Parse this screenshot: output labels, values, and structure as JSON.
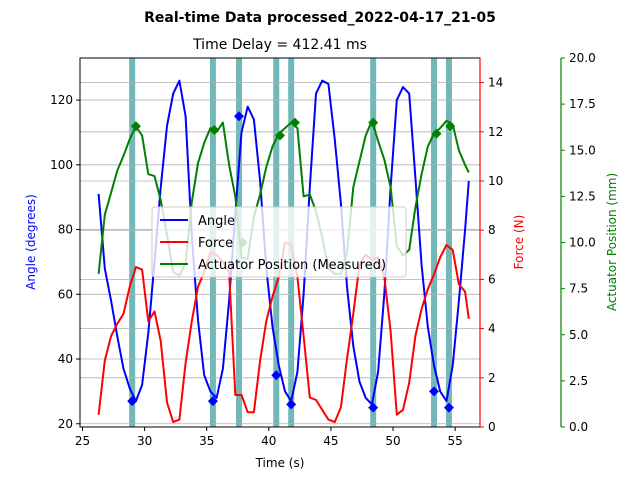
{
  "chart_data": {
    "type": "line",
    "title": "Real-time Data processed_2022-04-17_21-05",
    "subtitle": "Time Delay = 412.41 ms",
    "xlabel": "Time (s)",
    "xlim": [
      24.8,
      57.0
    ],
    "xticks": [
      "25",
      "30",
      "35",
      "40",
      "45",
      "50",
      "55"
    ],
    "grid": "horizontal",
    "legend_placement": "center",
    "axes": {
      "left": {
        "label": "Angle (degrees)",
        "color": "#0000ff",
        "ylim": [
          19,
          133
        ],
        "ticks": [
          "20",
          "40",
          "60",
          "80",
          "100",
          "120"
        ]
      },
      "right1": {
        "label": "Force (N)",
        "color": "#ff0000",
        "ylim": [
          0,
          15
        ],
        "ticks": [
          "0",
          "2",
          "4",
          "6",
          "8",
          "10",
          "12",
          "14"
        ]
      },
      "right2": {
        "label": "Actuator Position (mm)",
        "color": "#008000",
        "ylim": [
          0,
          20
        ],
        "ticks": [
          "0.0",
          "2.5",
          "5.0",
          "7.5",
          "10.0",
          "12.5",
          "15.0",
          "17.5",
          "20.0"
        ]
      }
    },
    "vertical_bands": [
      29.0,
      35.5,
      37.6,
      40.6,
      41.8,
      48.4,
      53.3,
      54.5
    ],
    "band_color": "#5aabab",
    "series": [
      {
        "name": "Angle",
        "axis": "left",
        "color": "#0000ff",
        "x": [
          26.3,
          26.8,
          27.3,
          27.8,
          28.3,
          28.8,
          29.3,
          29.8,
          30.3,
          30.8,
          31.3,
          31.8,
          32.3,
          32.8,
          33.3,
          33.8,
          34.3,
          34.8,
          35.3,
          35.8,
          36.3,
          36.8,
          37.3,
          37.8,
          38.3,
          38.8,
          39.3,
          39.8,
          40.3,
          40.8,
          41.3,
          41.8,
          42.3,
          42.8,
          43.3,
          43.8,
          44.3,
          44.8,
          45.3,
          45.8,
          46.3,
          46.8,
          47.3,
          47.8,
          48.3,
          48.8,
          49.3,
          49.8,
          50.3,
          50.8,
          51.3,
          51.8,
          52.3,
          52.8,
          53.3,
          53.8,
          54.3,
          54.8,
          55.3,
          55.8,
          56.1
        ],
        "y": [
          91,
          68,
          58,
          47,
          37,
          31,
          27,
          32,
          48,
          70,
          93,
          112,
          122,
          126,
          115,
          78,
          52,
          35,
          30,
          28,
          37,
          58,
          85,
          110,
          118,
          114,
          95,
          68,
          50,
          38,
          30,
          27,
          36,
          60,
          93,
          122,
          126,
          125,
          108,
          88,
          62,
          44,
          33,
          28,
          26,
          36,
          60,
          93,
          120,
          124,
          122,
          96,
          69,
          50,
          38,
          30,
          27,
          38,
          58,
          80,
          95
        ]
      },
      {
        "name": "Force",
        "axis": "right1",
        "color": "#ff0000",
        "x": [
          26.3,
          26.8,
          27.3,
          27.8,
          28.3,
          28.8,
          29.3,
          29.8,
          30.3,
          30.8,
          31.3,
          31.8,
          32.3,
          32.8,
          33.3,
          33.8,
          34.3,
          34.8,
          35.3,
          35.8,
          36.3,
          36.8,
          37.3,
          37.8,
          38.3,
          38.8,
          39.3,
          39.8,
          40.3,
          40.8,
          41.3,
          41.8,
          42.3,
          42.8,
          43.3,
          43.8,
          44.3,
          44.8,
          45.3,
          45.8,
          46.3,
          46.8,
          47.3,
          47.8,
          48.3,
          48.8,
          49.3,
          49.8,
          50.3,
          50.8,
          51.3,
          51.8,
          52.3,
          52.8,
          53.3,
          53.8,
          54.3,
          54.8,
          55.3,
          55.8,
          56.1
        ],
        "y": [
          0.5,
          2.7,
          3.7,
          4.2,
          4.6,
          5.7,
          6.5,
          6.4,
          4.3,
          4.7,
          3.5,
          1.0,
          0.2,
          0.3,
          2.6,
          4.3,
          5.7,
          6.3,
          7.1,
          7.0,
          6.7,
          6.3,
          1.3,
          1.3,
          0.6,
          0.6,
          2.7,
          4.3,
          5.3,
          6.1,
          7.5,
          7.4,
          6.1,
          3.7,
          1.2,
          1.1,
          0.7,
          0.3,
          0.2,
          0.8,
          2.8,
          4.6,
          6.6,
          7.0,
          6.8,
          6.9,
          6.1,
          3.9,
          0.5,
          0.7,
          1.8,
          3.7,
          4.8,
          5.6,
          6.2,
          6.9,
          7.4,
          7.2,
          5.8,
          5.5,
          4.4
        ]
      },
      {
        "name": "Actuator Position (Measured)",
        "axis": "right2",
        "color": "#008000",
        "x": [
          26.3,
          26.8,
          27.3,
          27.8,
          28.3,
          28.8,
          29.3,
          29.8,
          30.3,
          30.8,
          31.3,
          31.8,
          32.3,
          32.8,
          33.3,
          33.8,
          34.3,
          34.8,
          35.3,
          35.8,
          36.3,
          36.8,
          37.3,
          37.8,
          38.3,
          38.8,
          39.3,
          39.8,
          40.3,
          40.8,
          41.3,
          41.8,
          42.3,
          42.8,
          43.3,
          43.8,
          44.3,
          44.8,
          45.3,
          45.8,
          46.3,
          46.8,
          47.3,
          47.8,
          48.3,
          48.8,
          49.3,
          49.8,
          50.3,
          50.8,
          51.3,
          51.8,
          52.3,
          52.8,
          53.3,
          53.8,
          54.3,
          54.8,
          55.3,
          55.8,
          56.1
        ],
        "y": [
          8.3,
          11.5,
          12.7,
          13.9,
          14.7,
          15.6,
          16.3,
          15.8,
          13.7,
          13.6,
          12.3,
          10.4,
          8.4,
          8.2,
          8.9,
          12.2,
          14.3,
          15.4,
          16.2,
          16.0,
          16.5,
          14.2,
          12.5,
          9.2,
          9.1,
          11.4,
          12.6,
          14.1,
          15.2,
          15.9,
          16.2,
          16.5,
          16.2,
          12.5,
          12.6,
          11.7,
          10.3,
          8.6,
          8.3,
          8.3,
          9.5,
          13.0,
          14.4,
          15.8,
          16.6,
          15.5,
          14.5,
          13.0,
          9.8,
          9.3,
          9.6,
          11.9,
          13.7,
          15.2,
          15.9,
          16.2,
          16.6,
          16.4,
          15.0,
          14.2,
          13.8
        ]
      }
    ],
    "markers": [
      {
        "axis": "left",
        "color": "#0000ff",
        "x": 29.0,
        "y": 27
      },
      {
        "axis": "left",
        "color": "#0000ff",
        "x": 35.5,
        "y": 27
      },
      {
        "axis": "left",
        "color": "#0000ff",
        "x": 37.6,
        "y": 115
      },
      {
        "axis": "left",
        "color": "#0000ff",
        "x": 40.6,
        "y": 35
      },
      {
        "axis": "left",
        "color": "#0000ff",
        "x": 41.8,
        "y": 26
      },
      {
        "axis": "left",
        "color": "#0000ff",
        "x": 48.4,
        "y": 25
      },
      {
        "axis": "left",
        "color": "#0000ff",
        "x": 53.3,
        "y": 30
      },
      {
        "axis": "left",
        "color": "#0000ff",
        "x": 54.5,
        "y": 25
      },
      {
        "axis": "right2",
        "color": "#008000",
        "x": 29.3,
        "y": 16.3
      },
      {
        "axis": "right2",
        "color": "#008000",
        "x": 35.6,
        "y": 16.1
      },
      {
        "axis": "right2",
        "color": "#008000",
        "x": 37.9,
        "y": 10.0
      },
      {
        "axis": "right2",
        "color": "#008000",
        "x": 40.9,
        "y": 15.8
      },
      {
        "axis": "right2",
        "color": "#008000",
        "x": 42.1,
        "y": 16.5
      },
      {
        "axis": "right2",
        "color": "#008000",
        "x": 48.4,
        "y": 16.5
      },
      {
        "axis": "right2",
        "color": "#008000",
        "x": 53.5,
        "y": 15.9
      },
      {
        "axis": "right2",
        "color": "#008000",
        "x": 54.6,
        "y": 16.3
      }
    ]
  }
}
